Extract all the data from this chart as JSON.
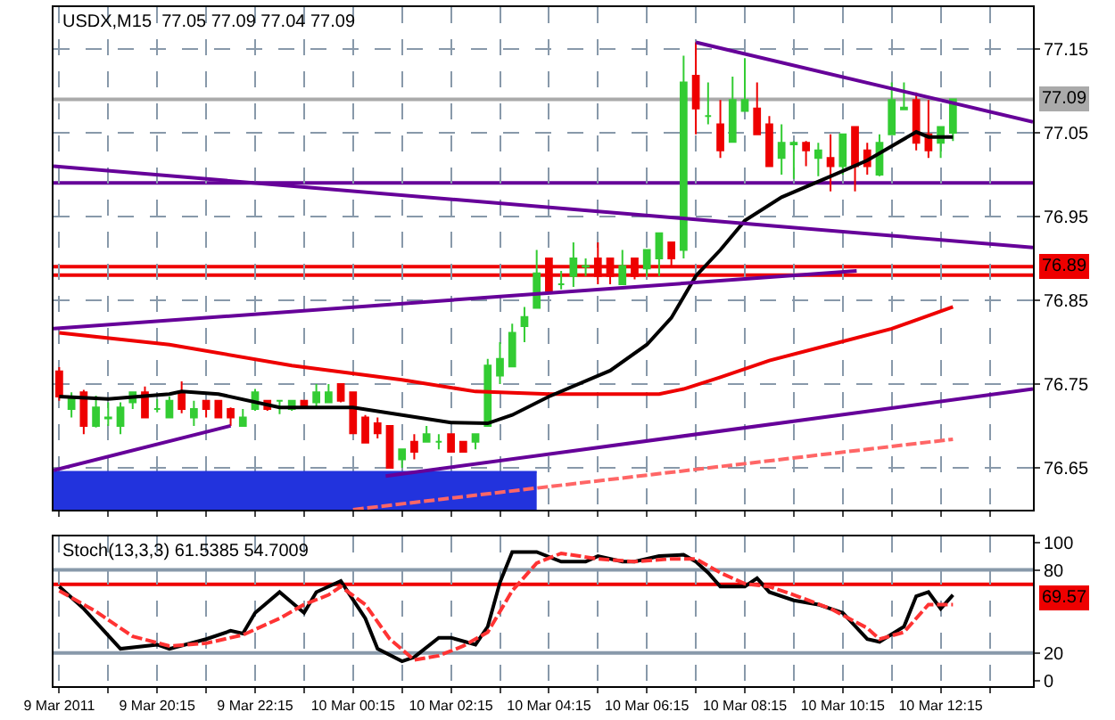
{
  "chart_data": [
    {
      "type": "candlestick",
      "title": "USDX,M15  77.05 77.09 77.04 77.09",
      "tick_labels": "y",
      "grid": true,
      "x": [
        "2011-03-09T18:15",
        "2011-03-09T18:30",
        "2011-03-09T18:45",
        "2011-03-09T19:00",
        "2011-03-09T19:15",
        "2011-03-09T19:30",
        "2011-03-09T19:45",
        "2011-03-09T20:00",
        "2011-03-09T20:15",
        "2011-03-09T20:30",
        "2011-03-09T20:45",
        "2011-03-09T21:00",
        "2011-03-09T21:15",
        "2011-03-09T21:30",
        "2011-03-09T21:45",
        "2011-03-09T22:00",
        "2011-03-09T22:15",
        "2011-03-09T22:30",
        "2011-03-09T22:45",
        "2011-03-09T23:00",
        "2011-03-09T23:15",
        "2011-03-09T23:30",
        "2011-03-09T23:45",
        "2011-03-10T00:00",
        "2011-03-10T00:15",
        "2011-03-10T00:30",
        "2011-03-10T00:45",
        "2011-03-10T01:00",
        "2011-03-10T01:15",
        "2011-03-10T01:30",
        "2011-03-10T01:45",
        "2011-03-10T02:00",
        "2011-03-10T02:15",
        "2011-03-10T02:30",
        "2011-03-10T02:45",
        "2011-03-10T03:00",
        "2011-03-10T03:15",
        "2011-03-10T03:30",
        "2011-03-10T03:45",
        "2011-03-10T04:00",
        "2011-03-10T04:15",
        "2011-03-10T04:30",
        "2011-03-10T04:45",
        "2011-03-10T05:00",
        "2011-03-10T05:15",
        "2011-03-10T05:30",
        "2011-03-10T05:45",
        "2011-03-10T06:00",
        "2011-03-10T06:15",
        "2011-03-10T06:30",
        "2011-03-10T06:45",
        "2011-03-10T07:00",
        "2011-03-10T07:15",
        "2011-03-10T07:30",
        "2011-03-10T07:45",
        "2011-03-10T08:00",
        "2011-03-10T08:15",
        "2011-03-10T08:30",
        "2011-03-10T08:45",
        "2011-03-10T09:00",
        "2011-03-10T09:15",
        "2011-03-10T09:30",
        "2011-03-10T09:45",
        "2011-03-10T10:00",
        "2011-03-10T10:15",
        "2011-03-10T10:30",
        "2011-03-10T10:45",
        "2011-03-10T11:00",
        "2011-03-10T11:15",
        "2011-03-10T11:30",
        "2011-03-10T11:45",
        "2011-03-10T12:00",
        "2011-03-10T12:15",
        "2011-03-10T12:30"
      ],
      "ohlc": [
        [
          76.765,
          76.77,
          76.73,
          76.735
        ],
        [
          76.72,
          76.74,
          76.71,
          76.732
        ],
        [
          76.74,
          76.743,
          76.69,
          76.7
        ],
        [
          76.7,
          76.736,
          76.698,
          76.722
        ],
        [
          76.709,
          76.728,
          76.7,
          76.71
        ],
        [
          76.7,
          76.728,
          76.69,
          76.722
        ],
        [
          76.728,
          76.74,
          76.72,
          76.74
        ],
        [
          76.74,
          76.747,
          76.71,
          76.71
        ],
        [
          76.72,
          76.732,
          76.716,
          76.72
        ],
        [
          76.71,
          76.735,
          76.71,
          76.73
        ],
        [
          76.74,
          76.753,
          76.715,
          76.72
        ],
        [
          76.71,
          76.73,
          76.7,
          76.72
        ],
        [
          76.73,
          76.73,
          76.71,
          76.72
        ],
        [
          76.73,
          76.73,
          76.71,
          76.71
        ],
        [
          76.72,
          76.722,
          76.7,
          76.71
        ],
        [
          76.7,
          76.72,
          76.7,
          76.71
        ],
        [
          76.72,
          76.744,
          76.718,
          76.74
        ],
        [
          76.73,
          76.73,
          76.718,
          76.72
        ],
        [
          76.73,
          76.73,
          76.714,
          76.73
        ],
        [
          76.72,
          76.73,
          76.718,
          76.73
        ],
        [
          76.73,
          76.73,
          76.72,
          76.722
        ],
        [
          76.728,
          76.75,
          76.722,
          76.74
        ],
        [
          76.728,
          76.75,
          76.728,
          76.74
        ],
        [
          76.75,
          76.75,
          76.728,
          76.73
        ],
        [
          76.74,
          76.74,
          76.691,
          76.691
        ],
        [
          76.71,
          76.713,
          76.68,
          76.68
        ],
        [
          76.703,
          76.71,
          76.685,
          76.691
        ],
        [
          76.7,
          76.7,
          76.65,
          76.65
        ],
        [
          76.66,
          76.672,
          76.65,
          76.672
        ],
        [
          76.681,
          76.69,
          76.66,
          76.669
        ],
        [
          76.681,
          76.7,
          76.681,
          76.69
        ],
        [
          76.681,
          76.69,
          76.672,
          76.681
        ],
        [
          76.69,
          76.69,
          76.669,
          76.669
        ],
        [
          76.681,
          76.681,
          76.669,
          76.669
        ],
        [
          76.681,
          76.69,
          76.672,
          76.69
        ],
        [
          76.7,
          76.78,
          76.7,
          76.772
        ],
        [
          76.76,
          76.8,
          76.75,
          76.78
        ],
        [
          76.771,
          76.822,
          76.771,
          76.811
        ],
        [
          76.819,
          76.842,
          76.8,
          76.83
        ],
        [
          76.841,
          76.91,
          76.841,
          76.882
        ],
        [
          76.9,
          76.9,
          76.861,
          76.861
        ],
        [
          76.869,
          76.885,
          76.863,
          76.869
        ],
        [
          76.879,
          76.919,
          76.866,
          76.9
        ],
        [
          76.89,
          76.9,
          76.879,
          76.891
        ],
        [
          76.9,
          76.919,
          76.869,
          76.879
        ],
        [
          76.9,
          76.9,
          76.869,
          76.879
        ],
        [
          76.869,
          76.91,
          76.869,
          76.891
        ],
        [
          76.9,
          76.9,
          76.875,
          76.879
        ],
        [
          76.888,
          76.91,
          76.879,
          76.91
        ],
        [
          76.9,
          76.93,
          76.879,
          76.93
        ],
        [
          76.919,
          76.919,
          76.891,
          76.9
        ],
        [
          76.91,
          77.142,
          76.9,
          77.11
        ],
        [
          77.118,
          77.158,
          77.048,
          77.079
        ],
        [
          77.07,
          77.11,
          77.06,
          77.07
        ],
        [
          77.06,
          77.089,
          77.02,
          77.029
        ],
        [
          77.039,
          77.117,
          77.039,
          77.089
        ],
        [
          77.076,
          77.139,
          77.076,
          77.089
        ],
        [
          77.079,
          77.11,
          77.048,
          77.048
        ],
        [
          77.06,
          77.07,
          77.01,
          77.01
        ],
        [
          77.02,
          77.06,
          77.0,
          77.038
        ],
        [
          77.036,
          77.04,
          76.995,
          77.038
        ],
        [
          77.038,
          77.04,
          77.01,
          77.029
        ],
        [
          77.02,
          77.038,
          76.998,
          77.029
        ],
        [
          77.02,
          77.048,
          76.98,
          77.01
        ],
        [
          77.01,
          77.048,
          77.0,
          77.048
        ],
        [
          77.057,
          77.057,
          76.98,
          77.01
        ],
        [
          77.029,
          77.038,
          77.0,
          77.01
        ],
        [
          77.0,
          77.048,
          76.998,
          77.038
        ],
        [
          77.048,
          77.11,
          77.048,
          77.089
        ],
        [
          77.078,
          77.11,
          77.078,
          77.08
        ],
        [
          77.089,
          77.098,
          77.029,
          77.038
        ],
        [
          77.048,
          77.089,
          77.02,
          77.029
        ],
        [
          77.038,
          77.057,
          77.02,
          77.057
        ],
        [
          77.05,
          77.09,
          77.04,
          77.09
        ]
      ],
      "colors": [
        "#ee0000",
        "#33cc33",
        "#ee0000",
        "#33cc33",
        "#33cc33",
        "#33cc33",
        "#33cc33",
        "#ee0000",
        "#33cc33",
        "#33cc33",
        "#ee0000",
        "#33cc33",
        "#ee0000",
        "#ee0000",
        "#ee0000",
        "#33cc33",
        "#33cc33",
        "#ee0000",
        "#33cc33",
        "#33cc33",
        "#ee0000",
        "#33cc33",
        "#33cc33",
        "#ee0000",
        "#ee0000",
        "#ee0000",
        "#ee0000",
        "#ee0000",
        "#33cc33",
        "#ee0000",
        "#33cc33",
        "#33cc33",
        "#ee0000",
        "#ee0000",
        "#33cc33",
        "#33cc33",
        "#33cc33",
        "#33cc33",
        "#33cc33",
        "#33cc33",
        "#ee0000",
        "#33cc33",
        "#33cc33",
        "#33cc33",
        "#ee0000",
        "#ee0000",
        "#33cc33",
        "#ee0000",
        "#33cc33",
        "#33cc33",
        "#ee0000",
        "#33cc33",
        "#ee0000",
        "#33cc33",
        "#ee0000",
        "#33cc33",
        "#33cc33",
        "#ee0000",
        "#ee0000",
        "#33cc33",
        "#33cc33",
        "#ee0000",
        "#33cc33",
        "#ee0000",
        "#33cc33",
        "#ee0000",
        "#ee0000",
        "#33cc33",
        "#33cc33",
        "#33cc33",
        "#ee0000",
        "#ee0000",
        "#33cc33",
        "#33cc33"
      ],
      "series": [
        {
          "type": "area",
          "color": "#2233dd",
          "x": [
            "2011-03-09T18:08",
            "2011-03-10T04:00"
          ],
          "values": [
            76.645,
            76.645
          ]
        },
        {
          "type": "line",
          "color": "#ff6666",
          "line_style": "dashed",
          "x": [
            "2011-03-10T00:15",
            "2011-03-10T12:30"
          ],
          "values": [
            76.6,
            76.684
          ]
        },
        {
          "type": "line",
          "color": "#ee0000",
          "x": [
            "2011-03-09T18:15",
            "2011-03-09T20:30",
            "2011-03-09T23:00",
            "2011-03-10T01:15",
            "2011-03-10T02:45",
            "2011-03-10T04:15",
            "2011-03-10T06:30",
            "2011-03-10T07:00",
            "2011-03-10T07:45",
            "2011-03-10T08:45",
            "2011-03-10T10:00",
            "2011-03-10T11:15",
            "2011-03-10T12:30"
          ],
          "values": [
            76.811,
            76.797,
            76.772,
            76.755,
            76.741,
            76.738,
            76.738,
            76.744,
            76.758,
            76.778,
            76.797,
            76.816,
            76.842
          ]
        },
        {
          "type": "line",
          "color": "#000000",
          "x": [
            "2011-03-09T18:15",
            "2011-03-09T19:15",
            "2011-03-09T20:30",
            "2011-03-09T20:45",
            "2011-03-09T21:30",
            "2011-03-09T22:45",
            "2011-03-10T00:15",
            "2011-03-10T01:15",
            "2011-03-10T02:15",
            "2011-03-10T03:00",
            "2011-03-10T03:30",
            "2011-03-10T04:15",
            "2011-03-10T05:30",
            "2011-03-10T06:15",
            "2011-03-10T06:45",
            "2011-03-10T07:15",
            "2011-03-10T07:45",
            "2011-03-10T08:15",
            "2011-03-10T09:00",
            "2011-03-10T10:00",
            "2011-03-10T10:45",
            "2011-03-10T11:45",
            "2011-03-10T12:00",
            "2011-03-10T12:30"
          ],
          "values": [
            76.735,
            76.732,
            76.738,
            76.741,
            76.738,
            76.722,
            76.722,
            76.713,
            76.704,
            76.703,
            76.713,
            76.735,
            76.766,
            76.797,
            76.829,
            76.879,
            76.91,
            76.945,
            76.973,
            76.998,
            77.017,
            77.051,
            77.045,
            77.045
          ]
        },
        {
          "type": "line",
          "color": "#660099",
          "x": [
            "2011-03-10T07:15",
            "2011-03-10T14:08"
          ],
          "values": [
            77.158,
            77.063
          ]
        },
        {
          "type": "line",
          "color": "#660099",
          "x": [
            "2011-03-09T18:08",
            "2011-03-10T14:08"
          ],
          "values": [
            77.01,
            76.913
          ]
        },
        {
          "type": "line",
          "color": "#660099",
          "x": [
            "2011-03-09T18:08",
            "2011-03-10T10:32"
          ],
          "values": [
            76.816,
            76.885
          ]
        },
        {
          "type": "line",
          "color": "#660099",
          "x": [
            "2011-03-09T18:08",
            "2011-03-09T21:45"
          ],
          "values": [
            76.647,
            76.7
          ]
        },
        {
          "type": "line",
          "color": "#660099",
          "x": [
            "2011-03-10T00:55",
            "2011-03-10T14:08"
          ],
          "values": [
            76.64,
            76.744
          ]
        }
      ],
      "ref_lines": [
        {
          "axis": "y",
          "value": 77.09,
          "label": "77.09",
          "color": "#aaaaaa"
        },
        {
          "axis": "y",
          "value": 76.99,
          "color": "#660099"
        },
        {
          "axis": "y",
          "value": 76.89,
          "label": "76.89",
          "color": "#ee0000"
        },
        {
          "axis": "y",
          "value": 76.88,
          "color": "#ee0000"
        }
      ],
      "xlim": [
        "2011-03-09T18:08",
        "2011-03-10T14:08"
      ],
      "xticks": [
        {
          "value": "2011-03-09T18:15",
          "label": null
        },
        {
          "value": "2011-03-09T19:15",
          "label": null
        },
        {
          "value": "2011-03-09T20:15",
          "label": null
        },
        {
          "value": "2011-03-09T21:15",
          "label": null
        },
        {
          "value": "2011-03-09T22:15",
          "label": null
        },
        {
          "value": "2011-03-09T23:15",
          "label": null
        },
        {
          "value": "2011-03-10T00:15",
          "label": null
        },
        {
          "value": "2011-03-10T01:15",
          "label": null
        },
        {
          "value": "2011-03-10T02:15",
          "label": null
        },
        {
          "value": "2011-03-10T03:15",
          "label": null
        },
        {
          "value": "2011-03-10T04:15",
          "label": null
        },
        {
          "value": "2011-03-10T05:15",
          "label": null
        },
        {
          "value": "2011-03-10T06:15",
          "label": null
        },
        {
          "value": "2011-03-10T07:15",
          "label": null
        },
        {
          "value": "2011-03-10T08:15",
          "label": null
        },
        {
          "value": "2011-03-10T09:15",
          "label": null
        },
        {
          "value": "2011-03-10T10:15",
          "label": null
        },
        {
          "value": "2011-03-10T11:15",
          "label": null
        },
        {
          "value": "2011-03-10T12:15",
          "label": null
        },
        {
          "value": "2011-03-10T13:15",
          "label": null
        }
      ],
      "ylim": [
        76.6,
        77.2
      ],
      "yticks": [
        76.65,
        76.75,
        76.85,
        76.95,
        77.05,
        77.15
      ]
    },
    {
      "type": "line",
      "title": "Stoch(13,3,3) 61.5385 54.7009",
      "grid": "x",
      "series": [
        {
          "color": "#000000",
          "line_style": "solid",
          "x": [
            "2011-03-09T18:15",
            "2011-03-09T18:45",
            "2011-03-09T19:30",
            "2011-03-09T20:15",
            "2011-03-09T20:30",
            "2011-03-09T21:15",
            "2011-03-09T21:45",
            "2011-03-09T22:00",
            "2011-03-09T22:15",
            "2011-03-09T22:45",
            "2011-03-09T23:15",
            "2011-03-09T23:30",
            "2011-03-10T00:00",
            "2011-03-10T00:30",
            "2011-03-10T00:45",
            "2011-03-10T01:15",
            "2011-03-10T01:30",
            "2011-03-10T02:00",
            "2011-03-10T02:15",
            "2011-03-10T02:45",
            "2011-03-10T03:00",
            "2011-03-10T03:15",
            "2011-03-10T03:30",
            "2011-03-10T04:00",
            "2011-03-10T04:30",
            "2011-03-10T05:00",
            "2011-03-10T05:15",
            "2011-03-10T05:45",
            "2011-03-10T06:00",
            "2011-03-10T06:30",
            "2011-03-10T07:00",
            "2011-03-10T07:15",
            "2011-03-10T07:30",
            "2011-03-10T07:45",
            "2011-03-10T08:15",
            "2011-03-10T08:30",
            "2011-03-10T08:45",
            "2011-03-10T09:15",
            "2011-03-10T09:45",
            "2011-03-10T10:15",
            "2011-03-10T10:45",
            "2011-03-10T11:00",
            "2011-03-10T11:30",
            "2011-03-10T11:45",
            "2011-03-10T12:00",
            "2011-03-10T12:15",
            "2011-03-10T12:30"
          ],
          "values": [
            68,
            52,
            23,
            26,
            23,
            30,
            36,
            34,
            49,
            64,
            49,
            64,
            72,
            45,
            23,
            14,
            17,
            31,
            31,
            26,
            39,
            71,
            93,
            93,
            86,
            86,
            90,
            86,
            86,
            90,
            91,
            86,
            78,
            68,
            68,
            74,
            64,
            58,
            55,
            49,
            30,
            28,
            39,
            61,
            64,
            52,
            62
          ]
        },
        {
          "color": "#ff3333",
          "line_style": "dashed",
          "x": [
            "2011-03-09T18:15",
            "2011-03-09T19:00",
            "2011-03-09T19:45",
            "2011-03-09T20:30",
            "2011-03-09T21:15",
            "2011-03-09T22:00",
            "2011-03-09T22:45",
            "2011-03-09T23:15",
            "2011-03-09T23:45",
            "2011-03-10T00:00",
            "2011-03-10T00:30",
            "2011-03-10T01:00",
            "2011-03-10T01:30",
            "2011-03-10T02:00",
            "2011-03-10T02:30",
            "2011-03-10T03:00",
            "2011-03-10T03:30",
            "2011-03-10T04:00",
            "2011-03-10T04:30",
            "2011-03-10T05:15",
            "2011-03-10T06:00",
            "2011-03-10T06:45",
            "2011-03-10T07:15",
            "2011-03-10T07:45",
            "2011-03-10T08:15",
            "2011-03-10T08:45",
            "2011-03-10T09:15",
            "2011-03-10T10:00",
            "2011-03-10T10:45",
            "2011-03-10T11:00",
            "2011-03-10T11:30",
            "2011-03-10T12:00",
            "2011-03-10T12:30"
          ],
          "values": [
            65,
            50,
            32,
            25,
            27,
            33,
            45,
            55,
            62,
            68,
            55,
            30,
            15,
            18,
            25,
            35,
            65,
            85,
            92,
            88,
            86,
            88,
            88,
            78,
            70,
            68,
            62,
            52,
            38,
            30,
            35,
            55,
            55
          ]
        }
      ],
      "ref_lines": [
        {
          "axis": "y",
          "value": 80,
          "color": "#8899aa"
        },
        {
          "axis": "y",
          "value": 20,
          "color": "#8899aa"
        },
        {
          "axis": "y",
          "value": 69.57,
          "label": "69.57",
          "color": "#ee0000"
        }
      ],
      "xlim": [
        "2011-03-09T18:08",
        "2011-03-10T14:08"
      ],
      "xticks": [
        {
          "value": "2011-03-09T18:15",
          "label": "9 Mar 2011"
        },
        {
          "value": "2011-03-09T19:15",
          "label": null
        },
        {
          "value": "2011-03-09T20:15",
          "label": "9 Mar 20:15"
        },
        {
          "value": "2011-03-09T21:15",
          "label": null
        },
        {
          "value": "2011-03-09T22:15",
          "label": "9 Mar 22:15"
        },
        {
          "value": "2011-03-09T23:15",
          "label": null
        },
        {
          "value": "2011-03-10T00:15",
          "label": "10 Mar 00:15"
        },
        {
          "value": "2011-03-10T01:15",
          "label": null
        },
        {
          "value": "2011-03-10T02:15",
          "label": "10 Mar 02:15"
        },
        {
          "value": "2011-03-10T03:15",
          "label": null
        },
        {
          "value": "2011-03-10T04:15",
          "label": "10 Mar 04:15"
        },
        {
          "value": "2011-03-10T05:15",
          "label": null
        },
        {
          "value": "2011-03-10T06:15",
          "label": "10 Mar 06:15"
        },
        {
          "value": "2011-03-10T07:15",
          "label": null
        },
        {
          "value": "2011-03-10T08:15",
          "label": "10 Mar 08:15"
        },
        {
          "value": "2011-03-10T09:15",
          "label": null
        },
        {
          "value": "2011-03-10T10:15",
          "label": "10 Mar 10:15"
        },
        {
          "value": "2011-03-10T11:15",
          "label": null
        },
        {
          "value": "2011-03-10T12:15",
          "label": "10 Mar 12:15"
        },
        {
          "value": "2011-03-10T13:15",
          "label": null
        }
      ],
      "ylim": [
        -4,
        104
      ],
      "yticks": [
        0,
        20,
        80,
        100
      ]
    }
  ]
}
